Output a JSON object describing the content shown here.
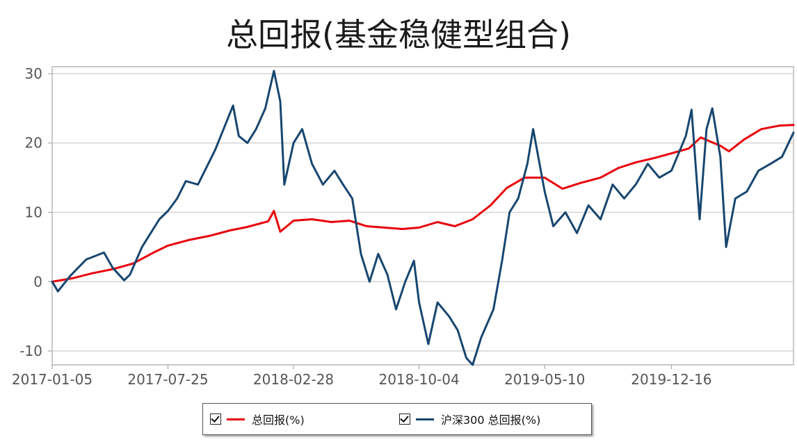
{
  "chart_data": {
    "type": "line",
    "title": "总回报(基金稳健型组合)",
    "xlabel": "",
    "ylabel": "",
    "ylim": [
      -12,
      31
    ],
    "yticks": [
      -10,
      0,
      10,
      20,
      30
    ],
    "xlim": [
      "2017-01-05",
      "2020-07-15"
    ],
    "xticks": [
      "2017-01-05",
      "2017-07-25",
      "2018-02-28",
      "2018-10-04",
      "2019-05-10",
      "2019-12-16"
    ],
    "grid": true,
    "legend_position": "bottom",
    "series": [
      {
        "name": "总回报(%)",
        "color": "#e8000b",
        "points": [
          [
            "2017-01-05",
            0
          ],
          [
            "2017-02-10",
            0.5
          ],
          [
            "2017-03-15",
            1.2
          ],
          [
            "2017-04-20",
            1.8
          ],
          [
            "2017-05-25",
            2.6
          ],
          [
            "2017-06-30",
            4.2
          ],
          [
            "2017-07-25",
            5.2
          ],
          [
            "2017-08-30",
            6.0
          ],
          [
            "2017-10-05",
            6.6
          ],
          [
            "2017-11-10",
            7.4
          ],
          [
            "2017-12-10",
            7.9
          ],
          [
            "2018-01-15",
            8.7
          ],
          [
            "2018-01-25",
            10.2
          ],
          [
            "2018-02-05",
            7.2
          ],
          [
            "2018-02-28",
            8.8
          ],
          [
            "2018-04-01",
            9.0
          ],
          [
            "2018-05-05",
            8.6
          ],
          [
            "2018-06-05",
            8.8
          ],
          [
            "2018-07-05",
            8.0
          ],
          [
            "2018-08-05",
            7.8
          ],
          [
            "2018-09-05",
            7.6
          ],
          [
            "2018-10-04",
            7.8
          ],
          [
            "2018-11-05",
            8.6
          ],
          [
            "2018-12-05",
            8.0
          ],
          [
            "2019-01-05",
            9.0
          ],
          [
            "2019-02-05",
            11.0
          ],
          [
            "2019-03-05",
            13.5
          ],
          [
            "2019-04-05",
            15.0
          ],
          [
            "2019-05-10",
            15.0
          ],
          [
            "2019-06-10",
            13.4
          ],
          [
            "2019-07-10",
            14.2
          ],
          [
            "2019-08-15",
            15.0
          ],
          [
            "2019-09-15",
            16.4
          ],
          [
            "2019-10-15",
            17.2
          ],
          [
            "2019-11-15",
            17.8
          ],
          [
            "2019-12-16",
            18.5
          ],
          [
            "2020-01-15",
            19.2
          ],
          [
            "2020-02-05",
            20.8
          ],
          [
            "2020-03-10",
            19.6
          ],
          [
            "2020-03-25",
            18.8
          ],
          [
            "2020-04-20",
            20.5
          ],
          [
            "2020-05-20",
            22.0
          ],
          [
            "2020-06-20",
            22.5
          ],
          [
            "2020-07-15",
            22.6
          ]
        ]
      },
      {
        "name": "沪深300 总回报(%)",
        "color": "#17466f",
        "points": [
          [
            "2017-01-05",
            0
          ],
          [
            "2017-01-15",
            -1.4
          ],
          [
            "2017-02-05",
            0.8
          ],
          [
            "2017-03-05",
            3.2
          ],
          [
            "2017-04-05",
            4.2
          ],
          [
            "2017-04-20",
            2.0
          ],
          [
            "2017-05-10",
            0.2
          ],
          [
            "2017-05-20",
            1.0
          ],
          [
            "2017-06-10",
            5.0
          ],
          [
            "2017-07-10",
            9.0
          ],
          [
            "2017-07-25",
            10.2
          ],
          [
            "2017-08-10",
            12.0
          ],
          [
            "2017-08-25",
            14.5
          ],
          [
            "2017-09-15",
            14.0
          ],
          [
            "2017-10-15",
            19.0
          ],
          [
            "2017-11-15",
            25.4
          ],
          [
            "2017-11-25",
            21.0
          ],
          [
            "2017-12-10",
            20.0
          ],
          [
            "2017-12-25",
            22.0
          ],
          [
            "2018-01-10",
            25.0
          ],
          [
            "2018-01-25",
            30.4
          ],
          [
            "2018-02-05",
            26.0
          ],
          [
            "2018-02-12",
            14.0
          ],
          [
            "2018-02-28",
            20.0
          ],
          [
            "2018-03-15",
            22.0
          ],
          [
            "2018-04-01",
            17.0
          ],
          [
            "2018-04-20",
            14.0
          ],
          [
            "2018-05-10",
            16.0
          ],
          [
            "2018-05-25",
            14.0
          ],
          [
            "2018-06-10",
            12.0
          ],
          [
            "2018-06-25",
            4.0
          ],
          [
            "2018-07-10",
            0.0
          ],
          [
            "2018-07-25",
            4.0
          ],
          [
            "2018-08-10",
            1.0
          ],
          [
            "2018-08-25",
            -4.0
          ],
          [
            "2018-09-10",
            0.0
          ],
          [
            "2018-09-25",
            3.0
          ],
          [
            "2018-10-04",
            -3.0
          ],
          [
            "2018-10-20",
            -9.0
          ],
          [
            "2018-11-05",
            -3.0
          ],
          [
            "2018-11-25",
            -5.0
          ],
          [
            "2018-12-10",
            -7.0
          ],
          [
            "2018-12-25",
            -11.0
          ],
          [
            "2019-01-05",
            -12.0
          ],
          [
            "2019-01-20",
            -8.0
          ],
          [
            "2019-02-10",
            -4.0
          ],
          [
            "2019-02-25",
            3.0
          ],
          [
            "2019-03-10",
            10.0
          ],
          [
            "2019-03-25",
            12.0
          ],
          [
            "2019-04-10",
            17.0
          ],
          [
            "2019-04-20",
            22.0
          ],
          [
            "2019-05-10",
            13.0
          ],
          [
            "2019-05-25",
            8.0
          ],
          [
            "2019-06-15",
            10.0
          ],
          [
            "2019-07-05",
            7.0
          ],
          [
            "2019-07-25",
            11.0
          ],
          [
            "2019-08-15",
            9.0
          ],
          [
            "2019-09-05",
            14.0
          ],
          [
            "2019-09-25",
            12.0
          ],
          [
            "2019-10-15",
            14.0
          ],
          [
            "2019-11-05",
            17.0
          ],
          [
            "2019-11-25",
            15.0
          ],
          [
            "2019-12-16",
            16.0
          ],
          [
            "2020-01-10",
            21.0
          ],
          [
            "2020-01-20",
            24.8
          ],
          [
            "2020-02-03",
            9.0
          ],
          [
            "2020-02-15",
            22.0
          ],
          [
            "2020-02-25",
            25.0
          ],
          [
            "2020-03-10",
            18.0
          ],
          [
            "2020-03-20",
            5.0
          ],
          [
            "2020-04-05",
            12.0
          ],
          [
            "2020-04-25",
            13.0
          ],
          [
            "2020-05-15",
            16.0
          ],
          [
            "2020-06-05",
            17.0
          ],
          [
            "2020-06-25",
            18.0
          ],
          [
            "2020-07-15",
            21.5
          ]
        ]
      }
    ]
  },
  "legend": {
    "items": [
      {
        "label": "总回报(%)",
        "color": "#e8000b",
        "checked": true
      },
      {
        "label": "沪深300 总回报(%)",
        "color": "#17466f",
        "checked": true
      }
    ]
  }
}
